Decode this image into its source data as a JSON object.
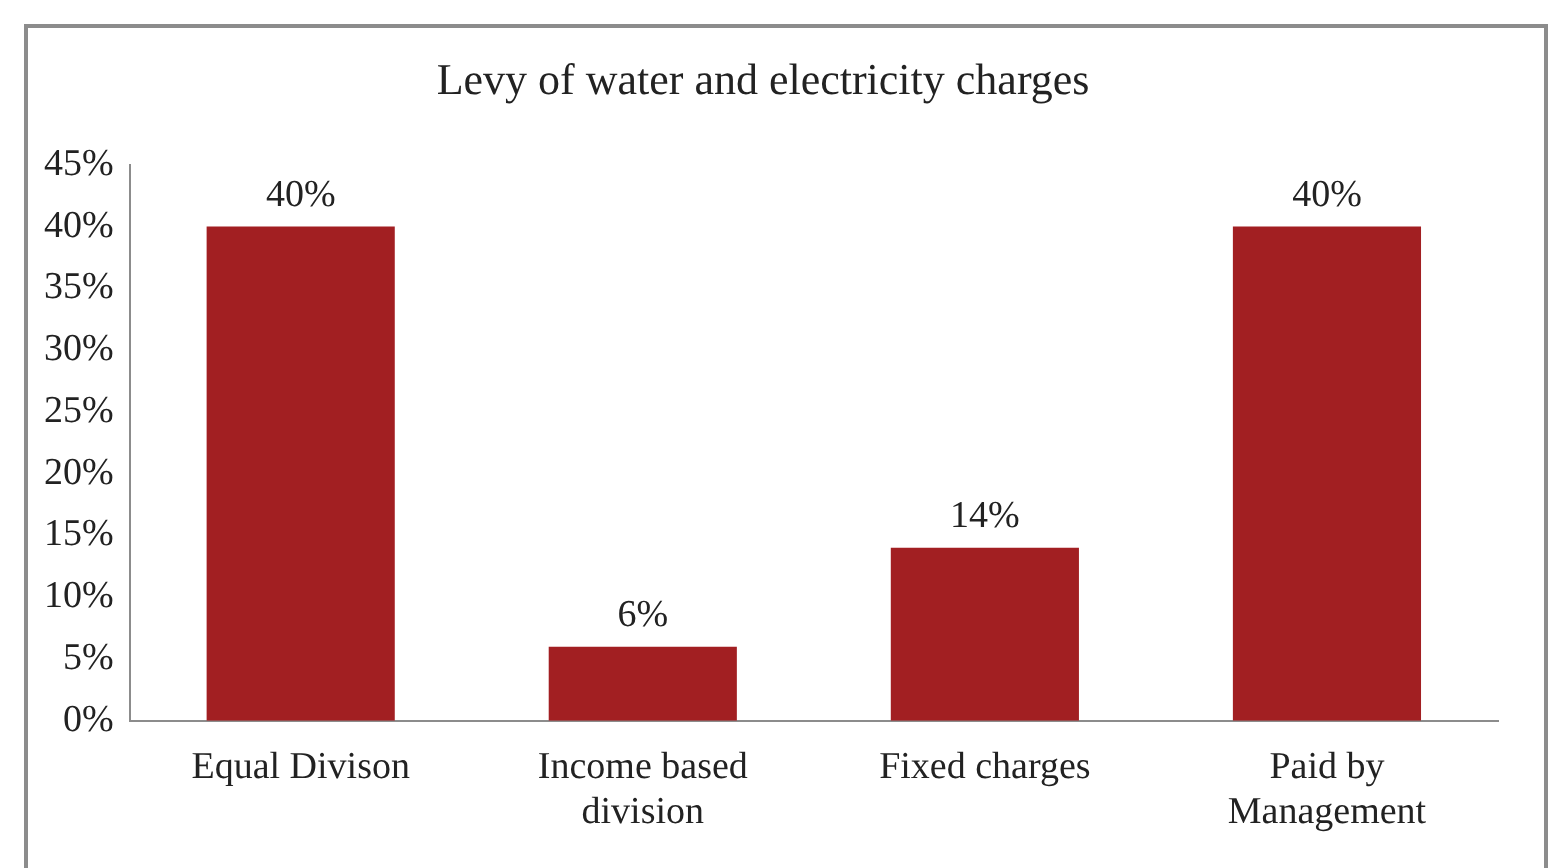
{
  "chart_data": {
    "type": "bar",
    "title": "Levy of water and electricity charges",
    "categories": [
      "Equal Divison",
      "Income based division",
      "Fixed charges",
      "Paid by Management"
    ],
    "values": [
      40,
      6,
      14,
      40
    ],
    "color": "#a21f22",
    "value_labels": [
      "40%",
      "6%",
      "14%",
      "40%"
    ],
    "ylim": [
      0,
      45
    ],
    "yticks": [
      {
        "value": 0,
        "label": "0%"
      },
      {
        "value": 5,
        "label": "5%"
      },
      {
        "value": 10,
        "label": "10%"
      },
      {
        "value": 15,
        "label": "15%"
      },
      {
        "value": 20,
        "label": "20%"
      },
      {
        "value": 25,
        "label": "25%"
      },
      {
        "value": 30,
        "label": "30%"
      },
      {
        "value": 35,
        "label": "35%"
      },
      {
        "value": 40,
        "label": "40%"
      },
      {
        "value": 45,
        "label": "45%"
      }
    ],
    "grid": false,
    "legend": false
  }
}
